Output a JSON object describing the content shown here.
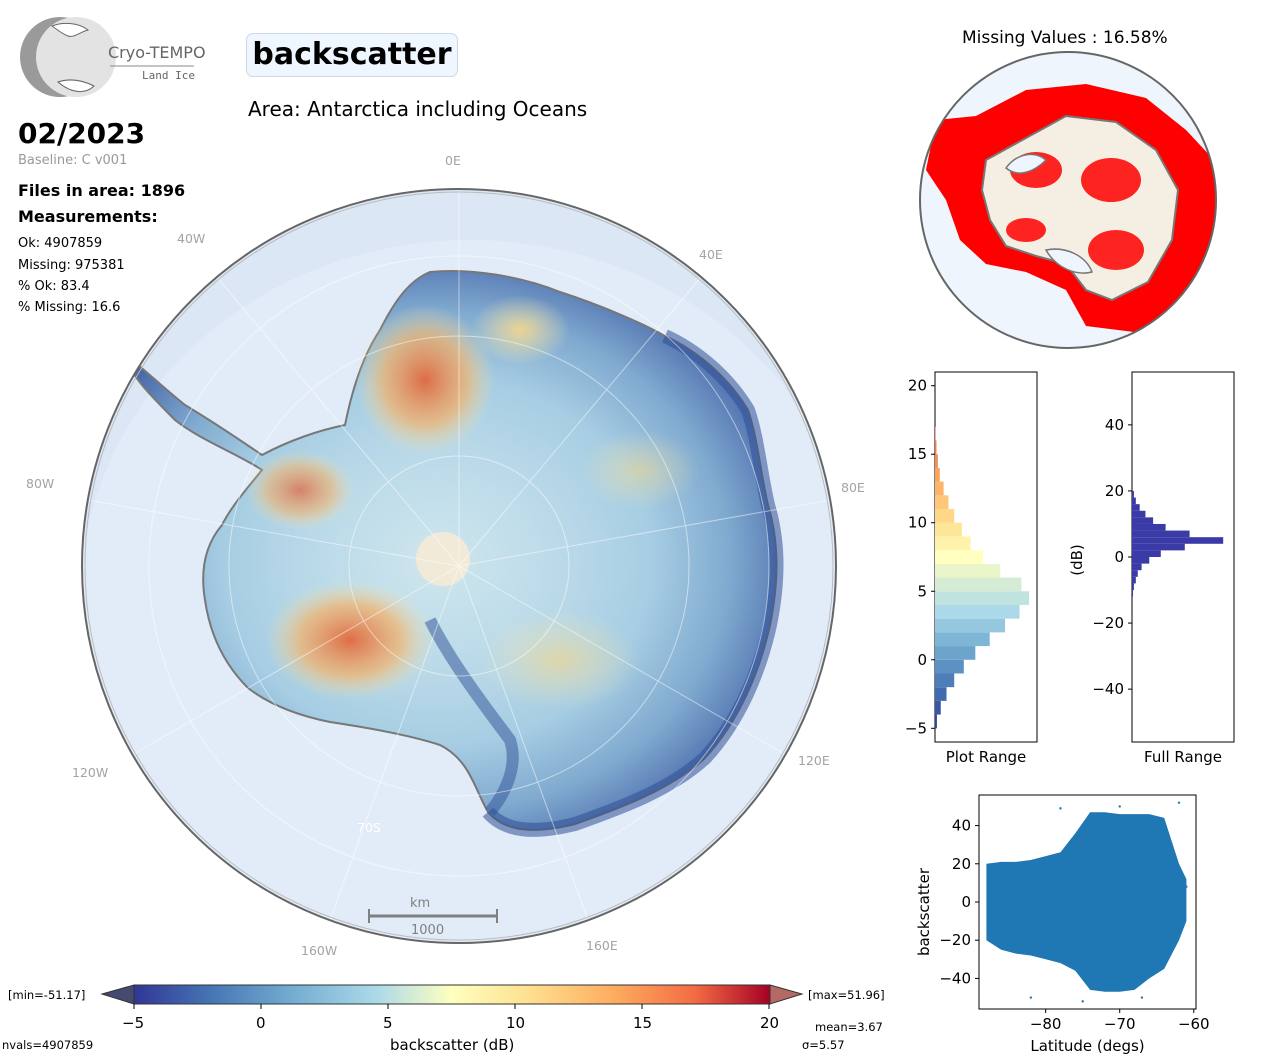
{
  "logo": {
    "name": "Cryo-TEMPO",
    "subtitle": "Land Ice"
  },
  "title": "backscatter",
  "area": "Area: Antarctica including Oceans",
  "date": "02/2023",
  "baseline": "Baseline: C v001",
  "files": "Files in area: 1896",
  "measurements_label": "Measurements:",
  "stats": {
    "ok": "Ok: 4907859",
    "missing": "Missing: 975381",
    "pct_ok": "% Ok: 83.4",
    "pct_missing": "% Missing: 16.6"
  },
  "map": {
    "longitude_labels": [
      "0E",
      "40E",
      "80E",
      "120E",
      "160E",
      "160W",
      "120W",
      "80W",
      "40W"
    ],
    "latitude_label": "70S",
    "scalebar_unit": "km",
    "scalebar_value": "1000"
  },
  "missing_panel": {
    "title": "Missing Values : 16.58%"
  },
  "colorbar": {
    "label": "backscatter (dB)",
    "ticks": [
      "−5",
      "0",
      "5",
      "10",
      "15",
      "20"
    ],
    "min_label": "[min=-51.17]",
    "max_label": "[max=51.96]",
    "nvals": "nvals=4907859",
    "mean": "mean=3.67",
    "sigma": "σ=5.57"
  },
  "colors": {
    "ocean": "#dce8f6",
    "missing": "#ff0000",
    "land_missing_panel": "#f4efe2",
    "histogram_full": "#3b3ba8",
    "scatter": "#1f77b4"
  },
  "chart_data": [
    {
      "type": "bar",
      "name": "plot_range_histogram",
      "xlabel": "Plot Range",
      "ylim": [
        -6,
        21
      ],
      "yticks": [
        "−5",
        "0",
        "5",
        "10",
        "15",
        "20"
      ],
      "bins_db": [
        -5,
        -4,
        -3,
        -2,
        -1,
        0,
        1,
        2,
        3,
        4,
        5,
        6,
        7,
        8,
        9,
        10,
        11,
        12,
        13,
        14,
        15,
        16
      ],
      "relative_counts": [
        0.02,
        0.06,
        0.12,
        0.2,
        0.3,
        0.42,
        0.57,
        0.73,
        0.88,
        0.98,
        0.9,
        0.68,
        0.5,
        0.37,
        0.28,
        0.2,
        0.14,
        0.09,
        0.05,
        0.03,
        0.015,
        0.005
      ]
    },
    {
      "type": "bar",
      "name": "full_range_histogram",
      "xlabel": "Full Range",
      "ylabel": "(dB)",
      "ylim": [
        -56,
        56
      ],
      "yticks": [
        "40",
        "20",
        "0",
        "−20",
        "−40"
      ],
      "bins_db": [
        -12,
        -10,
        -8,
        -6,
        -4,
        -2,
        0,
        2,
        4,
        6,
        8,
        10,
        12,
        14,
        16,
        18
      ],
      "relative_counts": [
        0.01,
        0.02,
        0.04,
        0.06,
        0.1,
        0.18,
        0.3,
        0.55,
        0.95,
        0.6,
        0.35,
        0.22,
        0.14,
        0.08,
        0.04,
        0.02
      ]
    },
    {
      "type": "scatter",
      "name": "latitude_scatter",
      "xlabel": "Latitude (degs)",
      "ylabel": "backscatter",
      "xlim": [
        -89,
        -59.7
      ],
      "ylim": [
        -56,
        56
      ],
      "xticks": [
        "−80",
        "−70",
        "−60"
      ],
      "yticks": [
        "40",
        "20",
        "0",
        "−20",
        "−40"
      ],
      "envelope": {
        "lat": [
          -88,
          -86,
          -84,
          -82,
          -80,
          -78,
          -76,
          -74,
          -72,
          -70,
          -68,
          -66,
          -64,
          -62,
          -61
        ],
        "upper": [
          20,
          21,
          21,
          22,
          24,
          26,
          36,
          47,
          47,
          46,
          46,
          46,
          44,
          20,
          12
        ],
        "lower": [
          -20,
          -25,
          -27,
          -28,
          -30,
          -32,
          -36,
          -46,
          -47,
          -47,
          -46,
          -40,
          -35,
          -20,
          -10
        ]
      }
    }
  ]
}
